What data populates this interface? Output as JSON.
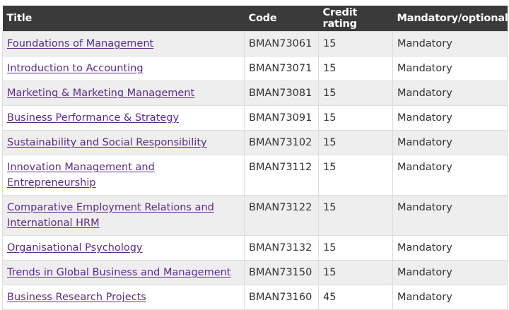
{
  "table": {
    "headers": [
      "Title",
      "Code",
      "Credit rating",
      "Mandatory/optional"
    ],
    "rows": [
      {
        "title": "Foundations of Management",
        "code": "BMAN73061",
        "credit": "15",
        "status": "Mandatory"
      },
      {
        "title": "Introduction to Accounting",
        "code": "BMAN73071",
        "credit": "15",
        "status": "Mandatory"
      },
      {
        "title": "Marketing & Marketing Management",
        "code": "BMAN73081",
        "credit": "15",
        "status": "Mandatory"
      },
      {
        "title": "Business Performance & Strategy",
        "code": "BMAN73091",
        "credit": "15",
        "status": "Mandatory"
      },
      {
        "title": "Sustainability and Social Responsibility",
        "code": "BMAN73102",
        "credit": "15",
        "status": "Mandatory"
      },
      {
        "title": "Innovation Management and Entrepreneurship",
        "code": "BMAN73112",
        "credit": "15",
        "status": "Mandatory"
      },
      {
        "title": "Comparative Employment Relations and International HRM",
        "code": "BMAN73122",
        "credit": "15",
        "status": "Mandatory"
      },
      {
        "title": "Organisational Psychology",
        "code": "BMAN73132",
        "credit": "15",
        "status": "Mandatory"
      },
      {
        "title": "Trends in Global Business and Management",
        "code": "BMAN73150",
        "credit": "15",
        "status": "Mandatory"
      },
      {
        "title": "Business Research Projects",
        "code": "BMAN73160",
        "credit": "45",
        "status": "Mandatory"
      }
    ]
  },
  "colors": {
    "header_bg": "#3a3a3a",
    "link": "#5b2b8c",
    "row_alt": "#eeeeee"
  }
}
